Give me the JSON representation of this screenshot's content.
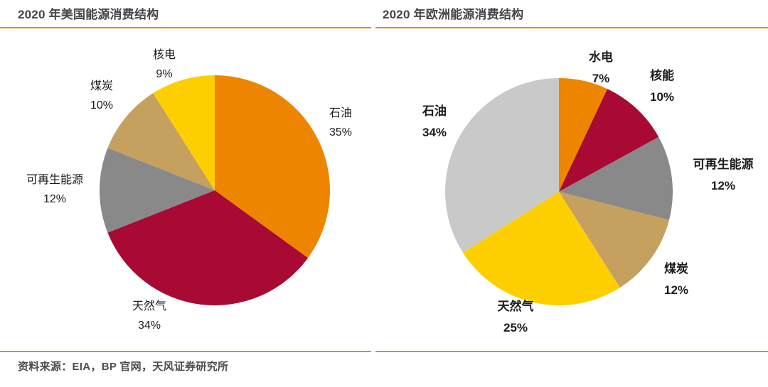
{
  "accent_color": "#F08300",
  "source_note": "资料来源：EIA，BP 官网，天风证券研究所",
  "chart_data": [
    {
      "type": "pie",
      "title": "2020 年美国能源消费结构",
      "start_angle_deg": 0,
      "direction": "clockwise",
      "legend": "none",
      "data_labels": "outside",
      "slices": [
        {
          "key": "oil",
          "label": "石油",
          "value": 35,
          "value_label": "35%",
          "color": "#ED8500"
        },
        {
          "key": "natural-gas",
          "label": "天然气",
          "value": 34,
          "value_label": "34%",
          "color": "#A80A33"
        },
        {
          "key": "renewables",
          "label": "可再生能源",
          "value": 12,
          "value_label": "12%",
          "color": "#898989"
        },
        {
          "key": "coal",
          "label": "煤炭",
          "value": 10,
          "value_label": "10%",
          "color": "#C5A05E"
        },
        {
          "key": "nuclear",
          "label": "核电",
          "value": 9,
          "value_label": "9%",
          "color": "#FDCF00"
        }
      ]
    },
    {
      "type": "pie",
      "title": "2020 年欧洲能源消费结构",
      "start_angle_deg": 0,
      "direction": "clockwise",
      "legend": "none",
      "data_labels": "outside",
      "slices": [
        {
          "key": "hydro",
          "label": "水电",
          "value": 7,
          "value_label": "7%",
          "color": "#ED8500"
        },
        {
          "key": "nuclear",
          "label": "核能",
          "value": 10,
          "value_label": "10%",
          "color": "#A80A33"
        },
        {
          "key": "renewables",
          "label": "可再生能源",
          "value": 12,
          "value_label": "12%",
          "color": "#898989"
        },
        {
          "key": "coal",
          "label": "煤炭",
          "value": 12,
          "value_label": "12%",
          "color": "#C5A05E"
        },
        {
          "key": "natural-gas",
          "label": "天然气",
          "value": 25,
          "value_label": "25%",
          "color": "#FDCF00"
        },
        {
          "key": "oil",
          "label": "石油",
          "value": 34,
          "value_label": "34%",
          "color": "#C9C9C9"
        }
      ]
    }
  ]
}
